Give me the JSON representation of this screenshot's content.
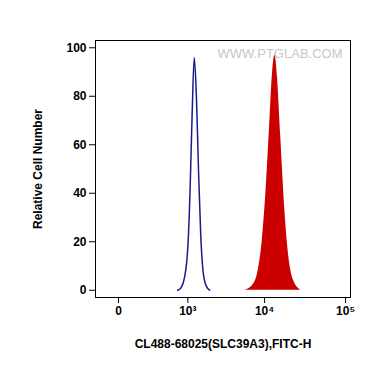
{
  "chart_data": {
    "type": "histogram",
    "x_label": "CL488-68025(SLC39A3),FITC-H",
    "y_label": "Relative Cell Number",
    "annotations": [
      {
        "text": "WWW.PTGLAB.COM"
      }
    ],
    "log": "x",
    "grid": false,
    "xlim": [
      -150,
      115000
    ],
    "xticks": [
      0,
      {
        "value": 1000,
        "label": "10³"
      },
      {
        "value": 10000,
        "label": "10⁴"
      },
      {
        "value": 100000,
        "label": "10⁵"
      }
    ],
    "ylim": [
      -3,
      103
    ],
    "yticks": [
      0,
      20,
      40,
      60,
      80,
      100
    ],
    "series": [
      {
        "type": "line",
        "color": "#1a1a8c",
        "x": [
          708,
          794,
          891,
          1000,
          1072,
          1148,
          1230,
          1318,
          1413,
          1514,
          1622,
          1778,
          1995
        ],
        "values": [
          0,
          1,
          5,
          18,
          40,
          72,
          96,
          80,
          48,
          22,
          8,
          2,
          0
        ]
      },
      {
        "type": "area",
        "color": "#cc0000",
        "x": [
          5623,
          7079,
          8318,
          9333,
          10471,
          11482,
          12589,
          13490,
          14454,
          15849,
          17783,
          19953,
          22909,
          28184
        ],
        "values": [
          0,
          2,
          8,
          20,
          42,
          66,
          90,
          97,
          88,
          64,
          34,
          14,
          4,
          0
        ]
      }
    ]
  }
}
